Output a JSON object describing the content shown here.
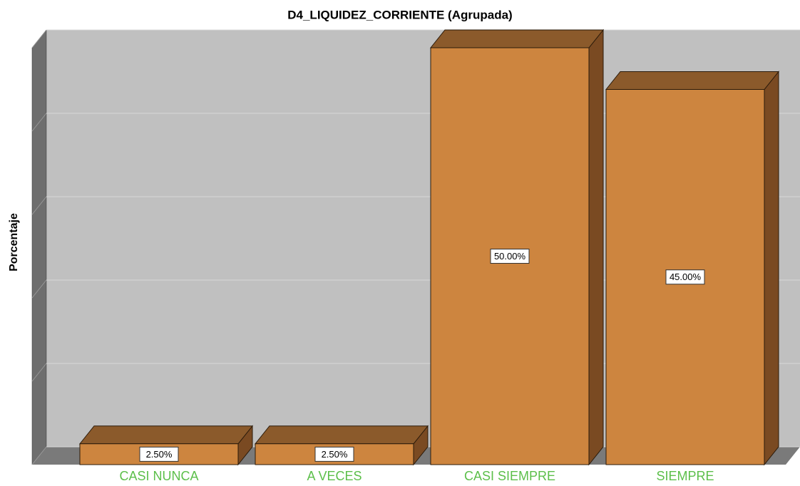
{
  "chart_data": {
    "type": "bar3d",
    "title": "D4_LIQUIDEZ_CORRIENTE (Agrupada)",
    "y_label": "Porcentaje",
    "categories": [
      "CASI NUNCA",
      "A VECES",
      "CASI SIEMPRE",
      "SIEMPRE"
    ],
    "values": [
      2.5,
      2.5,
      50,
      45
    ],
    "value_labels": [
      "2.50%",
      "2.50%",
      "50.00%",
      "45.00%"
    ],
    "color": "#cd853f",
    "ylim": [
      0,
      50
    ],
    "yticks": [
      0,
      10,
      20,
      30,
      40,
      50
    ],
    "grid": true
  }
}
